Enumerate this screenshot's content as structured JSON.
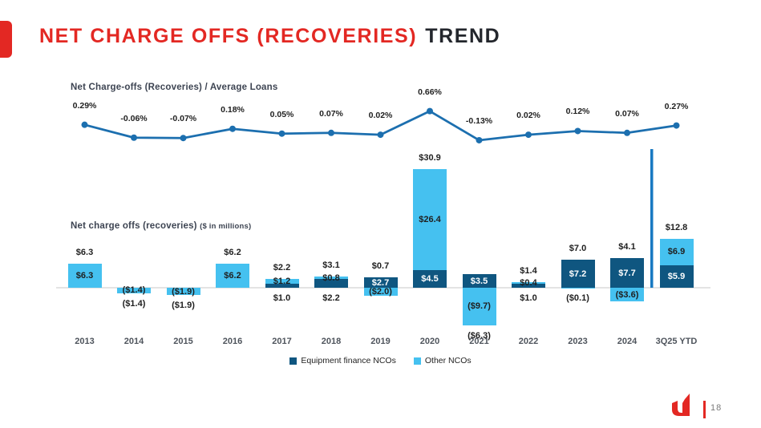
{
  "slide": {
    "title_red": "NET CHARGE OFFS (RECOVERIES)",
    "title_dark": "TREND",
    "page_number": "18"
  },
  "colors": {
    "accent_red": "#E32823",
    "equipment_dark_blue": "#0F5680",
    "other_light_blue": "#45C1F0",
    "trend_line_blue": "#1C6FAF",
    "ytd_separator_blue": "#1879C2",
    "axis_gray": "#dcdcdc"
  },
  "chart_data": [
    {
      "type": "line",
      "title": "Net Charge-offs (Recoveries) / Average Loans",
      "categories": [
        "2013",
        "2014",
        "2015",
        "2016",
        "2017",
        "2018",
        "2019",
        "2020",
        "2021",
        "2022",
        "2023",
        "2024",
        "3Q25 YTD"
      ],
      "values": [
        0.29,
        -0.06,
        -0.07,
        0.18,
        0.05,
        0.07,
        0.02,
        0.66,
        -0.13,
        0.02,
        0.12,
        0.07,
        0.27
      ],
      "labels": [
        "0.29%",
        "-0.06%",
        "-0.07%",
        "0.18%",
        "0.05%",
        "0.07%",
        "0.02%",
        "0.66%",
        "-0.13%",
        "0.02%",
        "0.12%",
        "0.07%",
        "0.27%"
      ],
      "ylim": [
        -0.2,
        0.8
      ],
      "grid": false,
      "legend_position": "none"
    },
    {
      "type": "bar",
      "stacked": true,
      "title": "Net charge offs (recoveries)",
      "title_suffix": "($ in millions)",
      "categories": [
        "2013",
        "2014",
        "2015",
        "2016",
        "2017",
        "2018",
        "2019",
        "2020",
        "2021",
        "2022",
        "2023",
        "2024",
        "3Q25 YTD"
      ],
      "series": [
        {
          "name": "Equipment finance NCOs",
          "color": "#0F5680",
          "values": [
            null,
            null,
            null,
            null,
            1.0,
            2.2,
            2.7,
            4.5,
            3.5,
            1.0,
            7.2,
            7.7,
            5.9
          ],
          "labels": [
            null,
            null,
            null,
            null,
            "$1.0",
            "$2.2",
            "$2.7",
            "$4.5",
            "$3.5",
            "$1.0",
            "$7.2",
            "$7.7",
            "$5.9"
          ],
          "label_pos": [
            null,
            null,
            null,
            null,
            "below-axis",
            "below-axis",
            "inside",
            "inside",
            "inside",
            "below-axis",
            "inside",
            "inside",
            "inside"
          ]
        },
        {
          "name": "Other NCOs",
          "color": "#45C1F0",
          "values": [
            6.3,
            -1.4,
            -1.9,
            6.2,
            1.2,
            0.8,
            -2.0,
            26.4,
            -9.7,
            0.4,
            -0.1,
            -3.6,
            6.9
          ],
          "labels": [
            "$6.3",
            "($1.4)",
            "($1.9)",
            "$6.2",
            "$1.2",
            "$0.8",
            "($2.0)",
            "$26.4",
            "($9.7)",
            "$0.4",
            "($0.1)",
            "($3.6)",
            "$6.9"
          ],
          "label_pos": [
            "inside",
            "inside",
            "inside",
            "inside",
            "inside",
            "inside",
            "inside",
            "inside",
            "inside",
            "inside",
            "below-axis",
            "inside",
            "inside"
          ]
        }
      ],
      "totals": [
        "$6.3",
        "($1.4)",
        "($1.9)",
        "$6.2",
        "$2.2",
        "$3.1",
        "$0.7",
        "$30.9",
        "($6.3)",
        "$1.4",
        "$7.0",
        "$4.1",
        "$12.8"
      ],
      "legend_position": "bottom",
      "ytd_separator_before": "3Q25 YTD"
    }
  ]
}
